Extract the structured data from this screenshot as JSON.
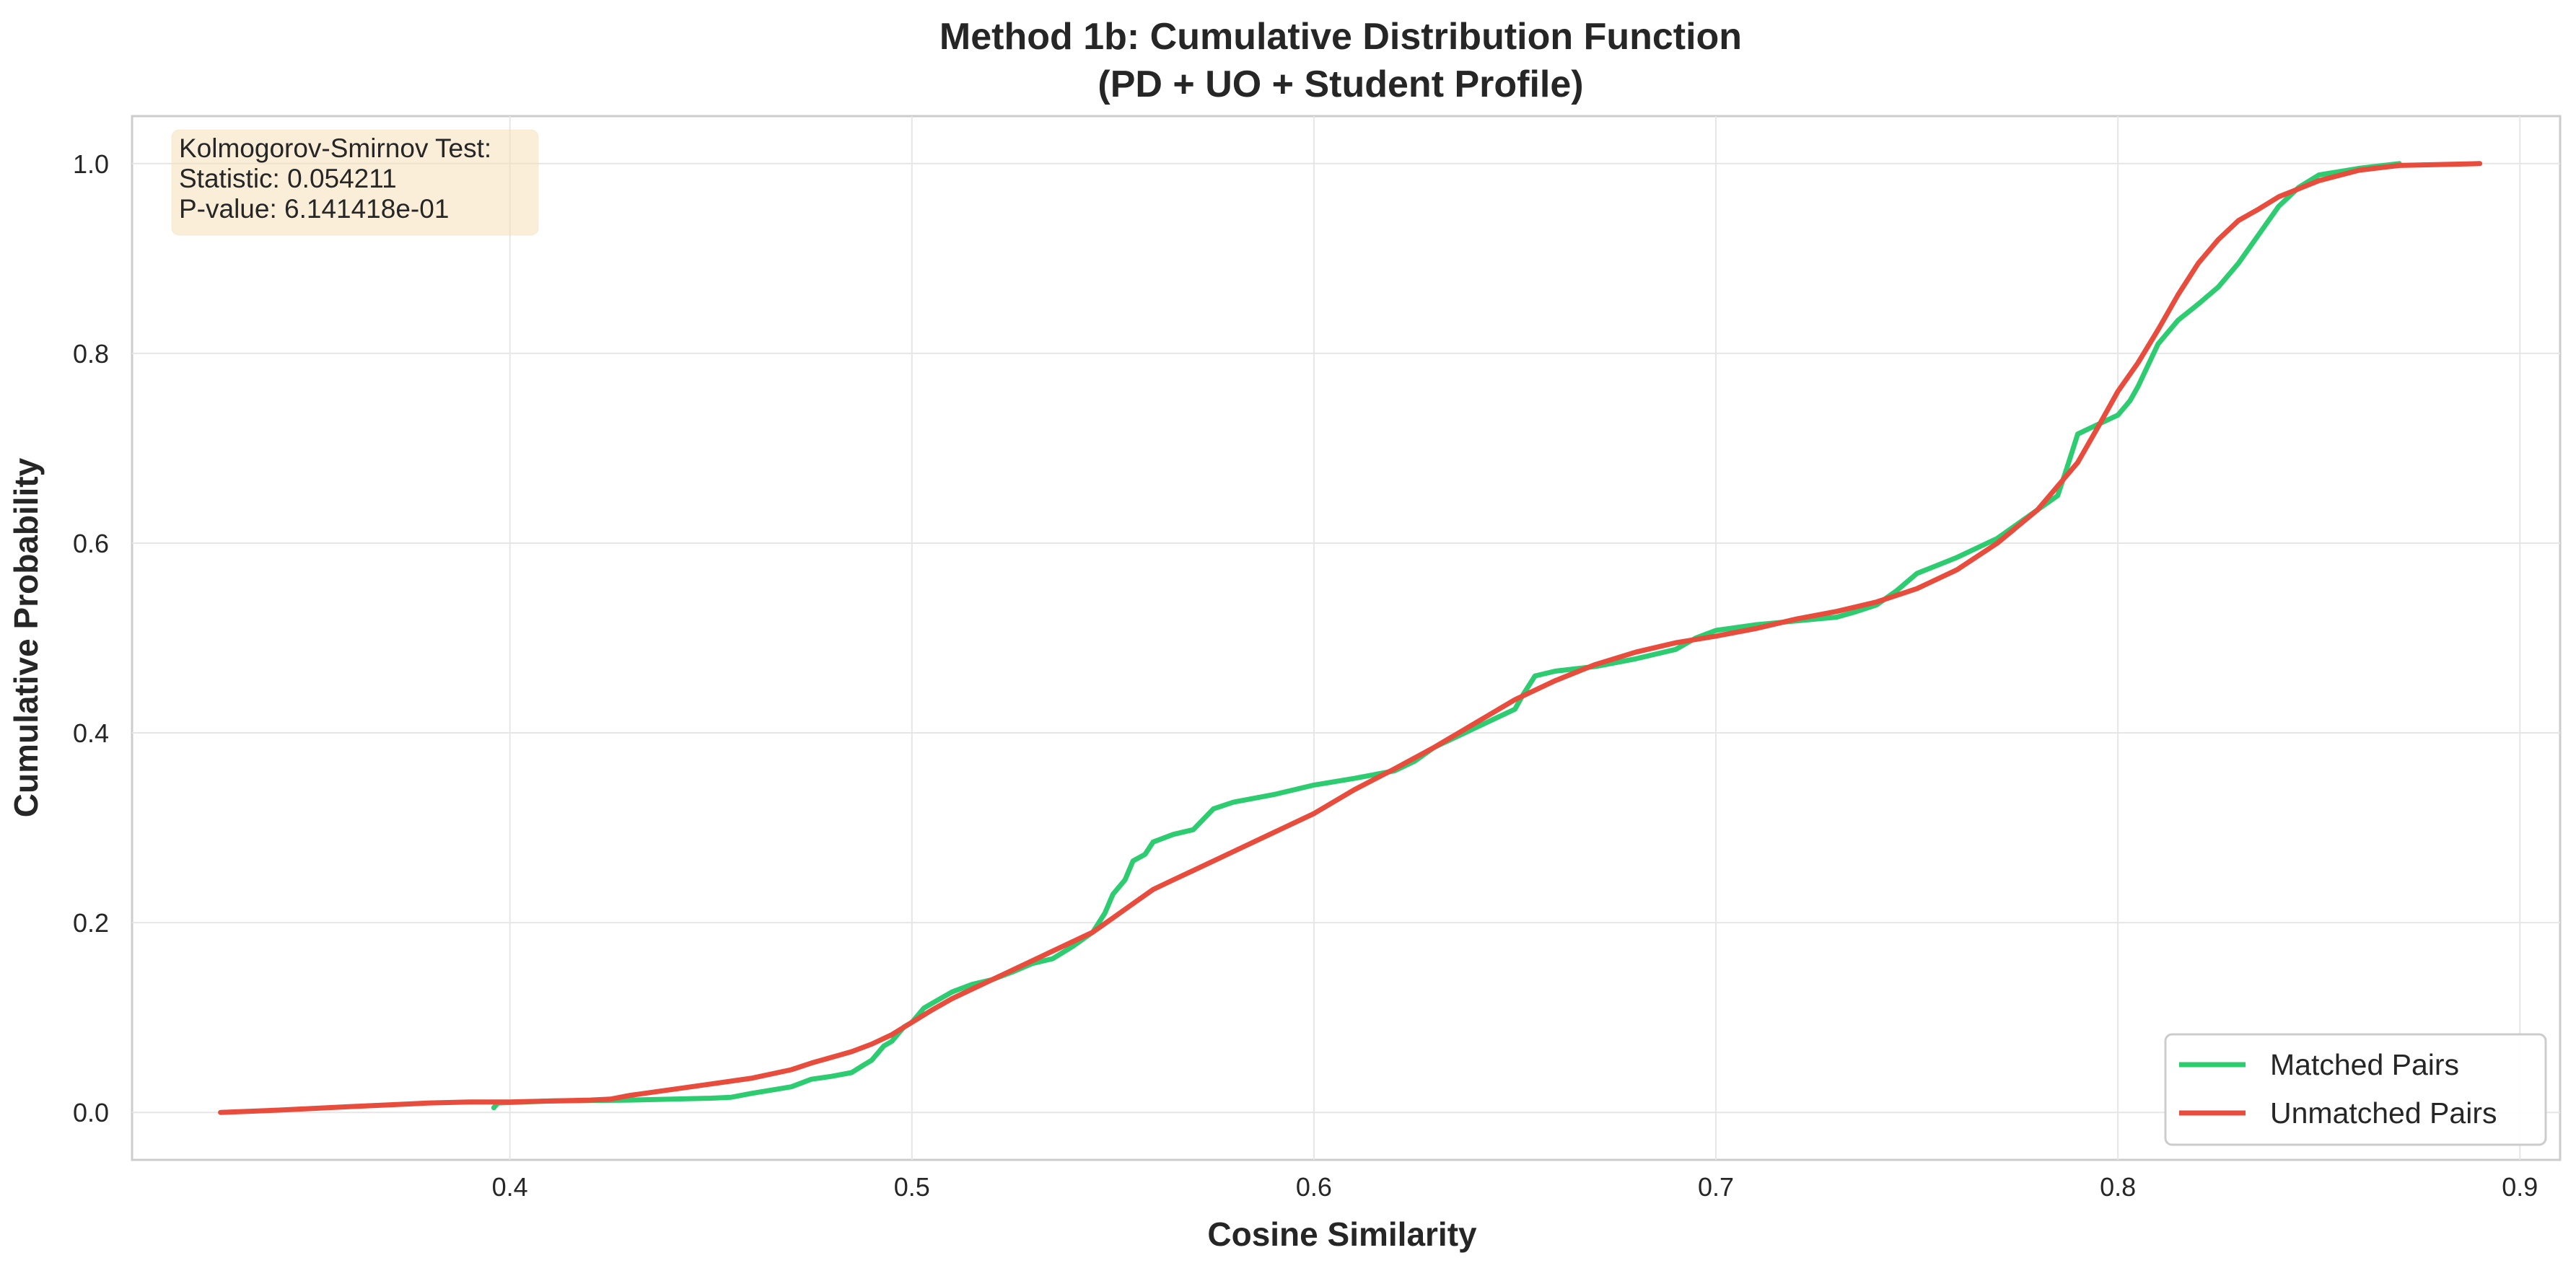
{
  "chart_data": {
    "type": "line",
    "title": [
      "Method 1b: Cumulative Distribution Function",
      "(PD + UO + Student Profile)"
    ],
    "xlabel": "Cosine Similarity",
    "ylabel": "Cumulative Probability",
    "xlim": [
      0.306,
      0.91
    ],
    "ylim": [
      -0.05,
      1.05
    ],
    "x_ticks": [
      0.4,
      0.5,
      0.6,
      0.7,
      0.8,
      0.9
    ],
    "x_tick_labels": [
      "0.4",
      "0.5",
      "0.6",
      "0.7",
      "0.8",
      "0.9"
    ],
    "y_ticks": [
      0.0,
      0.2,
      0.4,
      0.6,
      0.8,
      1.0
    ],
    "y_tick_labels": [
      "0.0",
      "0.2",
      "0.4",
      "0.6",
      "0.8",
      "1.0"
    ],
    "grid": true,
    "legend_position": "bottom-right",
    "annotation": [
      "Kolmogorov-Smirnov Test:",
      "Statistic: 0.054211",
      "P-value: 6.141418e-01"
    ],
    "series": [
      {
        "name": "Matched Pairs",
        "color": "#2ecc71",
        "x": [
          0.396,
          0.397,
          0.41,
          0.43,
          0.45,
          0.455,
          0.46,
          0.47,
          0.475,
          0.48,
          0.485,
          0.488,
          0.49,
          0.493,
          0.495,
          0.498,
          0.5,
          0.503,
          0.505,
          0.51,
          0.515,
          0.52,
          0.525,
          0.53,
          0.535,
          0.54,
          0.545,
          0.548,
          0.55,
          0.553,
          0.555,
          0.558,
          0.56,
          0.565,
          0.57,
          0.575,
          0.58,
          0.59,
          0.6,
          0.61,
          0.62,
          0.625,
          0.63,
          0.64,
          0.645,
          0.65,
          0.652,
          0.655,
          0.66,
          0.67,
          0.68,
          0.69,
          0.695,
          0.7,
          0.71,
          0.72,
          0.73,
          0.735,
          0.74,
          0.745,
          0.75,
          0.76,
          0.765,
          0.77,
          0.775,
          0.78,
          0.785,
          0.787,
          0.79,
          0.795,
          0.8,
          0.803,
          0.805,
          0.81,
          0.815,
          0.82,
          0.825,
          0.83,
          0.835,
          0.84,
          0.845,
          0.85,
          0.86,
          0.87
        ],
        "y": [
          0.005,
          0.01,
          0.012,
          0.013,
          0.015,
          0.016,
          0.02,
          0.027,
          0.035,
          0.038,
          0.042,
          0.05,
          0.055,
          0.07,
          0.075,
          0.09,
          0.095,
          0.11,
          0.115,
          0.127,
          0.135,
          0.14,
          0.148,
          0.157,
          0.162,
          0.175,
          0.19,
          0.21,
          0.23,
          0.245,
          0.265,
          0.272,
          0.285,
          0.293,
          0.298,
          0.32,
          0.327,
          0.335,
          0.345,
          0.352,
          0.36,
          0.37,
          0.385,
          0.405,
          0.415,
          0.425,
          0.44,
          0.46,
          0.465,
          0.47,
          0.478,
          0.488,
          0.5,
          0.508,
          0.514,
          0.518,
          0.522,
          0.528,
          0.535,
          0.55,
          0.568,
          0.585,
          0.595,
          0.605,
          0.62,
          0.635,
          0.65,
          0.675,
          0.715,
          0.725,
          0.735,
          0.75,
          0.765,
          0.81,
          0.835,
          0.852,
          0.87,
          0.895,
          0.925,
          0.955,
          0.975,
          0.988,
          0.995,
          1.0
        ]
      },
      {
        "name": "Unmatched Pairs",
        "color": "#e74c3c",
        "x": [
          0.328,
          0.34,
          0.35,
          0.36,
          0.37,
          0.38,
          0.39,
          0.4,
          0.41,
          0.42,
          0.425,
          0.43,
          0.44,
          0.45,
          0.46,
          0.47,
          0.475,
          0.48,
          0.485,
          0.49,
          0.495,
          0.5,
          0.505,
          0.51,
          0.515,
          0.52,
          0.525,
          0.53,
          0.535,
          0.54,
          0.545,
          0.55,
          0.555,
          0.56,
          0.565,
          0.57,
          0.58,
          0.59,
          0.6,
          0.61,
          0.62,
          0.63,
          0.64,
          0.65,
          0.66,
          0.67,
          0.68,
          0.69,
          0.7,
          0.71,
          0.72,
          0.73,
          0.74,
          0.75,
          0.76,
          0.77,
          0.78,
          0.79,
          0.795,
          0.8,
          0.805,
          0.81,
          0.815,
          0.82,
          0.825,
          0.83,
          0.835,
          0.84,
          0.85,
          0.86,
          0.87,
          0.89
        ],
        "y": [
          0.0,
          0.002,
          0.004,
          0.006,
          0.008,
          0.01,
          0.011,
          0.011,
          0.012,
          0.013,
          0.014,
          0.018,
          0.024,
          0.03,
          0.036,
          0.045,
          0.052,
          0.058,
          0.064,
          0.072,
          0.082,
          0.095,
          0.108,
          0.12,
          0.13,
          0.14,
          0.15,
          0.16,
          0.17,
          0.18,
          0.19,
          0.205,
          0.22,
          0.235,
          0.245,
          0.255,
          0.275,
          0.295,
          0.315,
          0.34,
          0.362,
          0.385,
          0.41,
          0.435,
          0.455,
          0.472,
          0.485,
          0.495,
          0.502,
          0.51,
          0.52,
          0.528,
          0.538,
          0.552,
          0.572,
          0.6,
          0.635,
          0.685,
          0.722,
          0.76,
          0.79,
          0.825,
          0.862,
          0.895,
          0.92,
          0.94,
          0.952,
          0.965,
          0.982,
          0.993,
          0.998,
          1.0
        ]
      }
    ]
  }
}
